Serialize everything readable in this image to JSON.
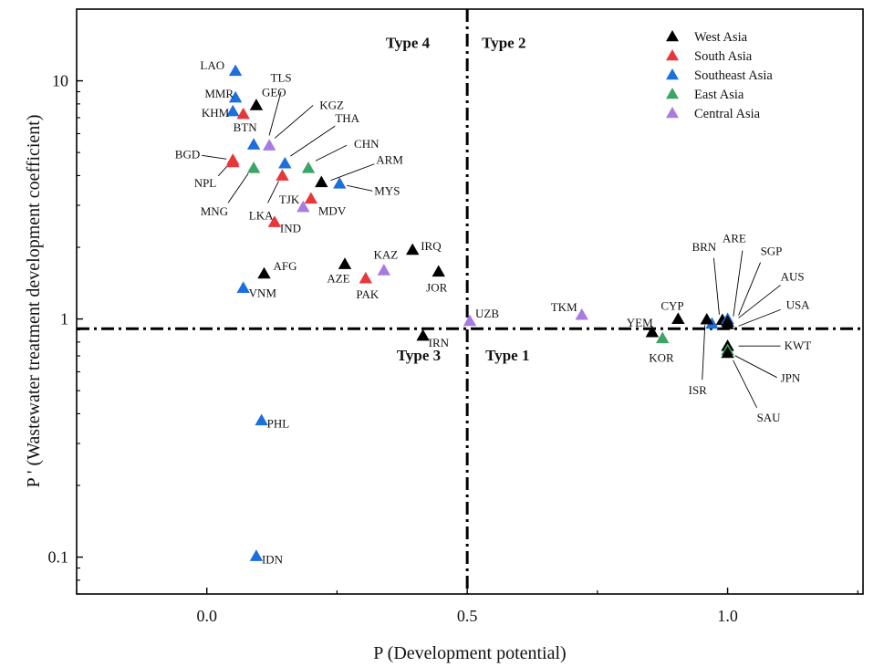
{
  "chart_data": {
    "type": "scatter",
    "xlabel": "P (Development potential)",
    "ylabel": "P ' (Wastewater treatment development coefficient)",
    "xlim": [
      -0.25,
      1.26
    ],
    "ylim": [
      0.07,
      20
    ],
    "yscale": "log",
    "x_ticks": [
      {
        "value": 0.0,
        "label": "0.0"
      },
      {
        "value": 0.5,
        "label": "0.5"
      },
      {
        "value": 1.0,
        "label": "1.0"
      }
    ],
    "y_ticks": [
      {
        "value": 0.1,
        "label": "0.1"
      },
      {
        "value": 1,
        "label": "1"
      },
      {
        "value": 10,
        "label": "10"
      }
    ],
    "threshold_x": 0.5,
    "threshold_y": 0.91,
    "quadrants": [
      {
        "name": "Type 4",
        "x": 0.38,
        "y": 14.5
      },
      {
        "name": "Type 2",
        "x": 0.5,
        "y": 14.5
      },
      {
        "name": "Type 3",
        "x": 0.38,
        "y": 0.705
      },
      {
        "name": "Type 1",
        "x": 0.5,
        "y": 0.705
      }
    ],
    "legend_position": "top-right",
    "series": [
      {
        "name": "West Asia",
        "color": "#000000"
      },
      {
        "name": "South Asia",
        "color": "#e8363a"
      },
      {
        "name": "Southeast Asia",
        "color": "#1c6fdc"
      },
      {
        "name": "East Asia",
        "color": "#3aa565"
      },
      {
        "name": "Central Asia",
        "color": "#a87be0"
      }
    ],
    "points": [
      {
        "label": "LAO",
        "series": "Southeast Asia",
        "x": 0.055,
        "y": 11.0
      },
      {
        "label": "MMR",
        "series": "Southeast Asia",
        "x": 0.055,
        "y": 8.5
      },
      {
        "label": "GEO",
        "series": "West Asia",
        "x": 0.095,
        "y": 7.9
      },
      {
        "label": "KHM",
        "series": "Southeast Asia",
        "x": 0.05,
        "y": 7.45
      },
      {
        "label": "BTN",
        "series": "South Asia",
        "x": 0.07,
        "y": 7.25
      },
      {
        "label": "TLS",
        "series": "Southeast Asia",
        "x": 0.09,
        "y": 5.4
      },
      {
        "label": "KGZ",
        "series": "Central Asia",
        "x": 0.12,
        "y": 5.35
      },
      {
        "label": "THA",
        "series": "Southeast Asia",
        "x": 0.15,
        "y": 4.5
      },
      {
        "label": "CHN",
        "series": "East Asia",
        "x": 0.195,
        "y": 4.3
      },
      {
        "label": "BGD",
        "series": "South Asia",
        "x": 0.05,
        "y": 4.65
      },
      {
        "label": "NPL",
        "series": "South Asia",
        "x": 0.05,
        "y": 4.55
      },
      {
        "label": "MNG",
        "series": "East Asia",
        "x": 0.09,
        "y": 4.3
      },
      {
        "label": "LKA",
        "series": "South Asia",
        "x": 0.145,
        "y": 4.0
      },
      {
        "label": "ARM",
        "series": "West Asia",
        "x": 0.22,
        "y": 3.75
      },
      {
        "label": "MYS",
        "series": "Southeast Asia",
        "x": 0.255,
        "y": 3.7
      },
      {
        "label": "MDV",
        "series": "South Asia",
        "x": 0.2,
        "y": 3.2
      },
      {
        "label": "TJK",
        "series": "Central Asia",
        "x": 0.185,
        "y": 2.95
      },
      {
        "label": "IND",
        "series": "South Asia",
        "x": 0.13,
        "y": 2.55
      },
      {
        "label": "IRQ",
        "series": "West Asia",
        "x": 0.395,
        "y": 1.95
      },
      {
        "label": "AZE",
        "series": "West Asia",
        "x": 0.265,
        "y": 1.7
      },
      {
        "label": "KAZ",
        "series": "Central Asia",
        "x": 0.34,
        "y": 1.6
      },
      {
        "label": "JOR",
        "series": "West Asia",
        "x": 0.445,
        "y": 1.58
      },
      {
        "label": "AFG",
        "series": "West Asia",
        "x": 0.11,
        "y": 1.55
      },
      {
        "label": "PAK",
        "series": "South Asia",
        "x": 0.305,
        "y": 1.48
      },
      {
        "label": "VNM",
        "series": "Southeast Asia",
        "x": 0.07,
        "y": 1.35
      },
      {
        "label": "UZB",
        "series": "Central Asia",
        "x": 0.505,
        "y": 0.98
      },
      {
        "label": "TKM",
        "series": "Central Asia",
        "x": 0.72,
        "y": 1.04
      },
      {
        "label": "IRN",
        "series": "West Asia",
        "x": 0.415,
        "y": 0.85
      },
      {
        "label": "CYP",
        "series": "West Asia",
        "x": 0.905,
        "y": 1.0
      },
      {
        "label": "YEM",
        "series": "West Asia",
        "x": 0.855,
        "y": 0.88
      },
      {
        "label": "KOR",
        "series": "East Asia",
        "x": 0.875,
        "y": 0.83
      },
      {
        "label": "BRN",
        "series": "Southeast Asia",
        "x": 0.97,
        "y": 0.955
      },
      {
        "label": "ISR",
        "series": "West Asia",
        "x": 0.96,
        "y": 0.995
      },
      {
        "label": "ARE",
        "series": "West Asia",
        "x": 0.99,
        "y": 0.99
      },
      {
        "label": "SGP",
        "series": "Southeast Asia",
        "x": 1.0,
        "y": 1.0
      },
      {
        "label": "AUS",
        "series": "West Asia",
        "x": 1.0,
        "y": 0.975
      },
      {
        "label": "USA",
        "series": "West Asia",
        "x": 1.0,
        "y": 0.95
      },
      {
        "label": "KWT",
        "series": "West Asia",
        "x": 1.0,
        "y": 0.77
      },
      {
        "label": "JPN",
        "series": "East Asia",
        "x": 1.0,
        "y": 0.74
      },
      {
        "label": "SAU",
        "series": "West Asia",
        "x": 1.0,
        "y": 0.72
      },
      {
        "label": "PHL",
        "series": "Southeast Asia",
        "x": 0.105,
        "y": 0.375
      },
      {
        "label": "IDN",
        "series": "Southeast Asia",
        "x": 0.095,
        "y": 0.101
      }
    ]
  }
}
